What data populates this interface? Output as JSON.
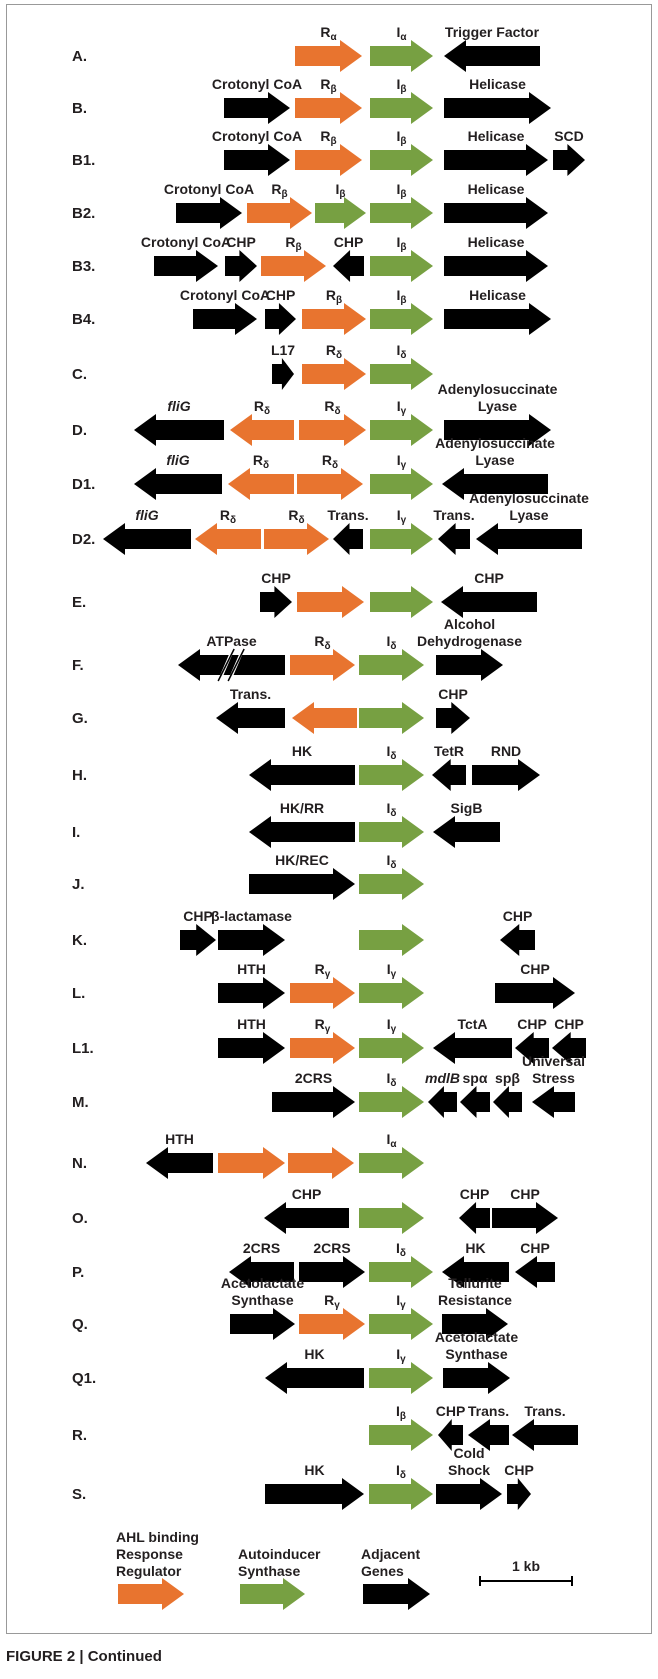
{
  "figure_caption": "FIGURE 2 | Continued",
  "colors": {
    "response_regulator": "#E8742F",
    "synthase": "#77A042",
    "adjacent": "#000000",
    "text": "#231f20"
  },
  "rows": [
    {
      "id": "A",
      "label": "A.",
      "genes": [
        {
          "x1": 295,
          "x2": 362,
          "dir": "right",
          "type": "R",
          "name": "R",
          "sub": "α"
        },
        {
          "x1": 370,
          "x2": 433,
          "dir": "right",
          "type": "I",
          "name": "I",
          "sub": "α"
        },
        {
          "x1": 444,
          "x2": 540,
          "dir": "left",
          "type": "X",
          "name": "Trigger Factor"
        }
      ]
    },
    {
      "id": "B",
      "label": "B.",
      "genes": [
        {
          "x1": 224,
          "x2": 290,
          "dir": "right",
          "type": "X",
          "name": "Crotonyl CoA"
        },
        {
          "x1": 295,
          "x2": 362,
          "dir": "right",
          "type": "R",
          "name": "R",
          "sub": "β"
        },
        {
          "x1": 370,
          "x2": 433,
          "dir": "right",
          "type": "I",
          "name": "I",
          "sub": "β"
        },
        {
          "x1": 444,
          "x2": 551,
          "dir": "right",
          "type": "X",
          "name": "Helicase"
        }
      ]
    },
    {
      "id": "B1",
      "label": "B1.",
      "genes": [
        {
          "x1": 224,
          "x2": 290,
          "dir": "right",
          "type": "X",
          "name": "Crotonyl CoA"
        },
        {
          "x1": 295,
          "x2": 362,
          "dir": "right",
          "type": "R",
          "name": "R",
          "sub": "β"
        },
        {
          "x1": 370,
          "x2": 433,
          "dir": "right",
          "type": "I",
          "name": "I",
          "sub": "β"
        },
        {
          "x1": 444,
          "x2": 548,
          "dir": "right",
          "type": "X",
          "name": "Helicase"
        },
        {
          "x1": 553,
          "x2": 585,
          "dir": "right",
          "type": "X",
          "name": "SCD"
        }
      ]
    },
    {
      "id": "B2",
      "label": "B2.",
      "genes": [
        {
          "x1": 176,
          "x2": 242,
          "dir": "right",
          "type": "X",
          "name": "Crotonyl CoA"
        },
        {
          "x1": 247,
          "x2": 312,
          "dir": "right",
          "type": "R",
          "name": "R",
          "sub": "β"
        },
        {
          "x1": 315,
          "x2": 366,
          "dir": "right",
          "type": "I",
          "name": "I",
          "sub": "β"
        },
        {
          "x1": 370,
          "x2": 433,
          "dir": "right",
          "type": "I",
          "name": "I",
          "sub": "β"
        },
        {
          "x1": 444,
          "x2": 548,
          "dir": "right",
          "type": "X",
          "name": "Helicase"
        }
      ]
    },
    {
      "id": "B3",
      "label": "B3.",
      "genes": [
        {
          "x1": 154,
          "x2": 218,
          "dir": "right",
          "type": "X",
          "name": "Crotonyl CoA"
        },
        {
          "x1": 225,
          "x2": 257,
          "dir": "right",
          "type": "X",
          "name": "CHP"
        },
        {
          "x1": 261,
          "x2": 326,
          "dir": "right",
          "type": "R",
          "name": "R",
          "sub": "β"
        },
        {
          "x1": 333,
          "x2": 364,
          "dir": "left",
          "type": "X",
          "name": "CHP"
        },
        {
          "x1": 370,
          "x2": 433,
          "dir": "right",
          "type": "I",
          "name": "I",
          "sub": "β"
        },
        {
          "x1": 444,
          "x2": 548,
          "dir": "right",
          "type": "X",
          "name": "Helicase"
        }
      ]
    },
    {
      "id": "B4",
      "label": "B4.",
      "genes": [
        {
          "x1": 193,
          "x2": 257,
          "dir": "right",
          "type": "X",
          "name": "Crotonyl CoA"
        },
        {
          "x1": 265,
          "x2": 296,
          "dir": "right",
          "type": "X",
          "name": "CHP"
        },
        {
          "x1": 302,
          "x2": 366,
          "dir": "right",
          "type": "R",
          "name": "R",
          "sub": "β"
        },
        {
          "x1": 370,
          "x2": 433,
          "dir": "right",
          "type": "I",
          "name": "I",
          "sub": "β"
        },
        {
          "x1": 444,
          "x2": 551,
          "dir": "right",
          "type": "X",
          "name": "Helicase"
        }
      ]
    },
    {
      "id": "C",
      "label": "C.",
      "genes": [
        {
          "x1": 272,
          "x2": 294,
          "dir": "right",
          "type": "X",
          "name": "L17"
        },
        {
          "x1": 302,
          "x2": 366,
          "dir": "right",
          "type": "R",
          "name": "R",
          "sub": "δ"
        },
        {
          "x1": 370,
          "x2": 433,
          "dir": "right",
          "type": "I",
          "name": "I",
          "sub": "δ"
        }
      ]
    },
    {
      "id": "D",
      "label": "D.",
      "genes": [
        {
          "x1": 134,
          "x2": 224,
          "dir": "left",
          "type": "X",
          "name": "fliG",
          "italic": true
        },
        {
          "x1": 230,
          "x2": 294,
          "dir": "left",
          "type": "R",
          "name": "R",
          "sub": "δ"
        },
        {
          "x1": 299,
          "x2": 366,
          "dir": "right",
          "type": "R",
          "name": "R",
          "sub": "δ"
        },
        {
          "x1": 370,
          "x2": 433,
          "dir": "right",
          "type": "I",
          "name": "I",
          "sub": "γ"
        },
        {
          "x1": 444,
          "x2": 551,
          "dir": "right",
          "type": "X",
          "name": "Adenylosuccinate Lyase"
        }
      ]
    },
    {
      "id": "D1",
      "label": "D1.",
      "genes": [
        {
          "x1": 134,
          "x2": 222,
          "dir": "left",
          "type": "X",
          "name": "fliG",
          "italic": true
        },
        {
          "x1": 228,
          "x2": 294,
          "dir": "left",
          "type": "R",
          "name": "R",
          "sub": "δ"
        },
        {
          "x1": 297,
          "x2": 363,
          "dir": "right",
          "type": "R",
          "name": "R",
          "sub": "δ"
        },
        {
          "x1": 370,
          "x2": 433,
          "dir": "right",
          "type": "I",
          "name": "I",
          "sub": "γ"
        },
        {
          "x1": 442,
          "x2": 548,
          "dir": "left",
          "type": "X",
          "name": "Adenylosuccinate Lyase"
        }
      ]
    },
    {
      "id": "D2",
      "label": "D2.",
      "genes": [
        {
          "x1": 103,
          "x2": 191,
          "dir": "left",
          "type": "X",
          "name": "fliG",
          "italic": true
        },
        {
          "x1": 195,
          "x2": 261,
          "dir": "left",
          "type": "R",
          "name": "R",
          "sub": "δ"
        },
        {
          "x1": 264,
          "x2": 329,
          "dir": "right",
          "type": "R",
          "name": "R",
          "sub": "δ"
        },
        {
          "x1": 333,
          "x2": 363,
          "dir": "left",
          "type": "X",
          "name": "Trans."
        },
        {
          "x1": 370,
          "x2": 433,
          "dir": "right",
          "type": "I",
          "name": "I",
          "sub": "γ"
        },
        {
          "x1": 438,
          "x2": 470,
          "dir": "left",
          "type": "X",
          "name": "Trans."
        },
        {
          "x1": 476,
          "x2": 582,
          "dir": "left",
          "type": "X",
          "name": "Adenylosuccinate Lyase"
        }
      ]
    },
    {
      "id": "E",
      "label": "E.",
      "genes": [
        {
          "x1": 260,
          "x2": 292,
          "dir": "right",
          "type": "X",
          "name": "CHP"
        },
        {
          "x1": 297,
          "x2": 364,
          "dir": "right",
          "type": "R",
          "name": ""
        },
        {
          "x1": 370,
          "x2": 433,
          "dir": "right",
          "type": "I",
          "name": ""
        },
        {
          "x1": 441,
          "x2": 537,
          "dir": "left",
          "type": "X",
          "name": "CHP"
        }
      ]
    },
    {
      "id": "F",
      "label": "F.",
      "genes": [
        {
          "x1": 178,
          "x2": 285,
          "dir": "left",
          "type": "X",
          "name": "ATPase",
          "broken": true
        },
        {
          "x1": 290,
          "x2": 355,
          "dir": "right",
          "type": "R",
          "name": "R",
          "sub": "δ"
        },
        {
          "x1": 359,
          "x2": 424,
          "dir": "right",
          "type": "I",
          "name": "I",
          "sub": "δ"
        },
        {
          "x1": 436,
          "x2": 503,
          "dir": "right",
          "type": "X",
          "name": "Alcohol Dehydrogenase"
        }
      ]
    },
    {
      "id": "G",
      "label": "G.",
      "genes": [
        {
          "x1": 216,
          "x2": 285,
          "dir": "left",
          "type": "X",
          "name": "Trans."
        },
        {
          "x1": 292,
          "x2": 357,
          "dir": "left",
          "type": "R",
          "name": ""
        },
        {
          "x1": 359,
          "x2": 424,
          "dir": "right",
          "type": "I",
          "name": ""
        },
        {
          "x1": 436,
          "x2": 470,
          "dir": "right",
          "type": "X",
          "name": "CHP"
        }
      ]
    },
    {
      "id": "H",
      "label": "H.",
      "genes": [
        {
          "x1": 249,
          "x2": 355,
          "dir": "left",
          "type": "X",
          "name": "HK"
        },
        {
          "x1": 359,
          "x2": 424,
          "dir": "right",
          "type": "I",
          "name": "I",
          "sub": "δ"
        },
        {
          "x1": 432,
          "x2": 466,
          "dir": "left",
          "type": "X",
          "name": "TetR"
        },
        {
          "x1": 472,
          "x2": 540,
          "dir": "right",
          "type": "X",
          "name": "RND"
        }
      ]
    },
    {
      "id": "I",
      "label": "I.",
      "genes": [
        {
          "x1": 249,
          "x2": 355,
          "dir": "left",
          "type": "X",
          "name": "HK/RR"
        },
        {
          "x1": 359,
          "x2": 424,
          "dir": "right",
          "type": "I",
          "name": "I",
          "sub": "δ"
        },
        {
          "x1": 433,
          "x2": 500,
          "dir": "left",
          "type": "X",
          "name": "SigB"
        }
      ]
    },
    {
      "id": "J",
      "label": "J.",
      "genes": [
        {
          "x1": 249,
          "x2": 355,
          "dir": "right",
          "type": "X",
          "name": "HK/REC"
        },
        {
          "x1": 359,
          "x2": 424,
          "dir": "right",
          "type": "I",
          "name": "I",
          "sub": "δ"
        }
      ]
    },
    {
      "id": "K",
      "label": "K.",
      "genes": [
        {
          "x1": 180,
          "x2": 216,
          "dir": "right",
          "type": "X",
          "name": "CHP"
        },
        {
          "x1": 218,
          "x2": 285,
          "dir": "right",
          "type": "X",
          "name": "β-lactamase"
        },
        {
          "x1": 359,
          "x2": 424,
          "dir": "right",
          "type": "I",
          "name": ""
        },
        {
          "x1": 500,
          "x2": 535,
          "dir": "left",
          "type": "X",
          "name": "CHP"
        }
      ]
    },
    {
      "id": "L",
      "label": "L.",
      "genes": [
        {
          "x1": 218,
          "x2": 285,
          "dir": "right",
          "type": "X",
          "name": "HTH"
        },
        {
          "x1": 290,
          "x2": 355,
          "dir": "right",
          "type": "R",
          "name": "R",
          "sub": "γ"
        },
        {
          "x1": 359,
          "x2": 424,
          "dir": "right",
          "type": "I",
          "name": "I",
          "sub": "γ"
        },
        {
          "x1": 495,
          "x2": 575,
          "dir": "right",
          "type": "X",
          "name": "CHP"
        }
      ]
    },
    {
      "id": "L1",
      "label": "L1.",
      "genes": [
        {
          "x1": 218,
          "x2": 285,
          "dir": "right",
          "type": "X",
          "name": "HTH"
        },
        {
          "x1": 290,
          "x2": 355,
          "dir": "right",
          "type": "R",
          "name": "R",
          "sub": "γ"
        },
        {
          "x1": 359,
          "x2": 424,
          "dir": "right",
          "type": "I",
          "name": "I",
          "sub": "γ"
        },
        {
          "x1": 433,
          "x2": 512,
          "dir": "left",
          "type": "X",
          "name": "TctA"
        },
        {
          "x1": 515,
          "x2": 549,
          "dir": "left",
          "type": "X",
          "name": "CHP"
        },
        {
          "x1": 552,
          "x2": 586,
          "dir": "left",
          "type": "X",
          "name": "CHP"
        }
      ]
    },
    {
      "id": "M",
      "label": "M.",
      "genes": [
        {
          "x1": 272,
          "x2": 355,
          "dir": "right",
          "type": "X",
          "name": "2CRS"
        },
        {
          "x1": 359,
          "x2": 424,
          "dir": "right",
          "type": "I",
          "name": "I",
          "sub": "δ"
        },
        {
          "x1": 428,
          "x2": 457,
          "dir": "left",
          "type": "X",
          "name": "mdlB",
          "italic": true
        },
        {
          "x1": 460,
          "x2": 490,
          "dir": "left",
          "type": "X",
          "name": "spα"
        },
        {
          "x1": 493,
          "x2": 522,
          "dir": "left",
          "type": "X",
          "name": "spβ"
        },
        {
          "x1": 532,
          "x2": 575,
          "dir": "left",
          "type": "X",
          "name": "Universal Stress"
        }
      ]
    },
    {
      "id": "N",
      "label": "N.",
      "genes": [
        {
          "x1": 146,
          "x2": 213,
          "dir": "left",
          "type": "X",
          "name": "HTH"
        },
        {
          "x1": 218,
          "x2": 285,
          "dir": "right",
          "type": "R",
          "name": ""
        },
        {
          "x1": 288,
          "x2": 354,
          "dir": "right",
          "type": "R",
          "name": ""
        },
        {
          "x1": 359,
          "x2": 424,
          "dir": "right",
          "type": "I",
          "name": "I",
          "sub": "α"
        }
      ]
    },
    {
      "id": "O",
      "label": "O.",
      "genes": [
        {
          "x1": 264,
          "x2": 349,
          "dir": "left",
          "type": "X",
          "name": "CHP"
        },
        {
          "x1": 359,
          "x2": 424,
          "dir": "right",
          "type": "I",
          "name": ""
        },
        {
          "x1": 459,
          "x2": 490,
          "dir": "left",
          "type": "X",
          "name": "CHP"
        },
        {
          "x1": 492,
          "x2": 558,
          "dir": "right",
          "type": "X",
          "name": "CHP"
        }
      ]
    },
    {
      "id": "P",
      "label": "P.",
      "genes": [
        {
          "x1": 229,
          "x2": 294,
          "dir": "left",
          "type": "X",
          "name": "2CRS"
        },
        {
          "x1": 299,
          "x2": 365,
          "dir": "right",
          "type": "X",
          "name": "2CRS"
        },
        {
          "x1": 369,
          "x2": 433,
          "dir": "right",
          "type": "I",
          "name": "I",
          "sub": "δ"
        },
        {
          "x1": 442,
          "x2": 509,
          "dir": "left",
          "type": "X",
          "name": "HK"
        },
        {
          "x1": 515,
          "x2": 555,
          "dir": "left",
          "type": "X",
          "name": "CHP"
        }
      ]
    },
    {
      "id": "Q",
      "label": "Q.",
      "genes": [
        {
          "x1": 230,
          "x2": 295,
          "dir": "right",
          "type": "X",
          "name": "Acetolactate Synthase"
        },
        {
          "x1": 299,
          "x2": 365,
          "dir": "right",
          "type": "R",
          "name": "R",
          "sub": "γ"
        },
        {
          "x1": 369,
          "x2": 433,
          "dir": "right",
          "type": "I",
          "name": "I",
          "sub": "γ"
        },
        {
          "x1": 442,
          "x2": 508,
          "dir": "right",
          "type": "X",
          "name": "Tellurite Resistance"
        }
      ]
    },
    {
      "id": "Q1",
      "label": "Q1.",
      "genes": [
        {
          "x1": 265,
          "x2": 364,
          "dir": "left",
          "type": "X",
          "name": "HK"
        },
        {
          "x1": 369,
          "x2": 433,
          "dir": "right",
          "type": "I",
          "name": "I",
          "sub": "γ"
        },
        {
          "x1": 443,
          "x2": 510,
          "dir": "right",
          "type": "X",
          "name": "Acetolactate Synthase"
        }
      ]
    },
    {
      "id": "R",
      "label": "R.",
      "genes": [
        {
          "x1": 369,
          "x2": 433,
          "dir": "right",
          "type": "I",
          "name": "I",
          "sub": "β"
        },
        {
          "x1": 438,
          "x2": 463,
          "dir": "left",
          "type": "X",
          "name": "CHP"
        },
        {
          "x1": 468,
          "x2": 509,
          "dir": "left",
          "type": "X",
          "name": "Trans."
        },
        {
          "x1": 512,
          "x2": 578,
          "dir": "left",
          "type": "X",
          "name": "Trans."
        }
      ]
    },
    {
      "id": "S",
      "label": "S.",
      "genes": [
        {
          "x1": 265,
          "x2": 364,
          "dir": "right",
          "type": "X",
          "name": "HK"
        },
        {
          "x1": 369,
          "x2": 433,
          "dir": "right",
          "type": "I",
          "name": "I",
          "sub": "δ"
        },
        {
          "x1": 436,
          "x2": 502,
          "dir": "right",
          "type": "X",
          "name": "Cold Shock"
        },
        {
          "x1": 507,
          "x2": 531,
          "dir": "right",
          "type": "X",
          "name": "CHP"
        }
      ]
    }
  ],
  "legend": [
    {
      "type": "R",
      "label": "AHL binding Response Regulator"
    },
    {
      "type": "I",
      "label": "Autoinducer Synthase"
    },
    {
      "type": "X",
      "label": "Adjacent Genes"
    }
  ],
  "scale_bar": {
    "label": "1 kb"
  }
}
